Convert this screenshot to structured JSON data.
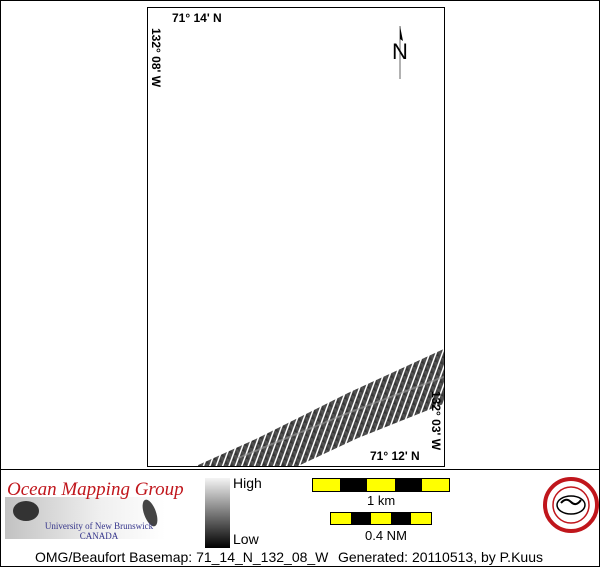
{
  "map": {
    "top_lat_label": "71° 14' N",
    "left_lon_label": "132° 08' W",
    "bottom_lat_label": "71° 12' N",
    "right_lon_label": "132° 03' W",
    "north_arrow_label": "N"
  },
  "legend": {
    "high_label": "High",
    "low_label": "Low",
    "gradient_colors": [
      "#f4f4f4",
      "#000000"
    ]
  },
  "branding": {
    "group_name": "Ocean Mapping Group",
    "university": "University of New Brunswick",
    "country": "CANADA",
    "seal_text": "GEODESY AND GEOMATICS ENGINEERING UNB"
  },
  "scale": {
    "km_label": "1 km",
    "nm_label": "0.4 NM",
    "colors": [
      "#ffff00",
      "#000000"
    ]
  },
  "footer": {
    "basemap": "OMG/Beaufort Basemap: 71_14_N_132_08_W",
    "generated": "Generated: 20110513, by P.Kuus"
  }
}
